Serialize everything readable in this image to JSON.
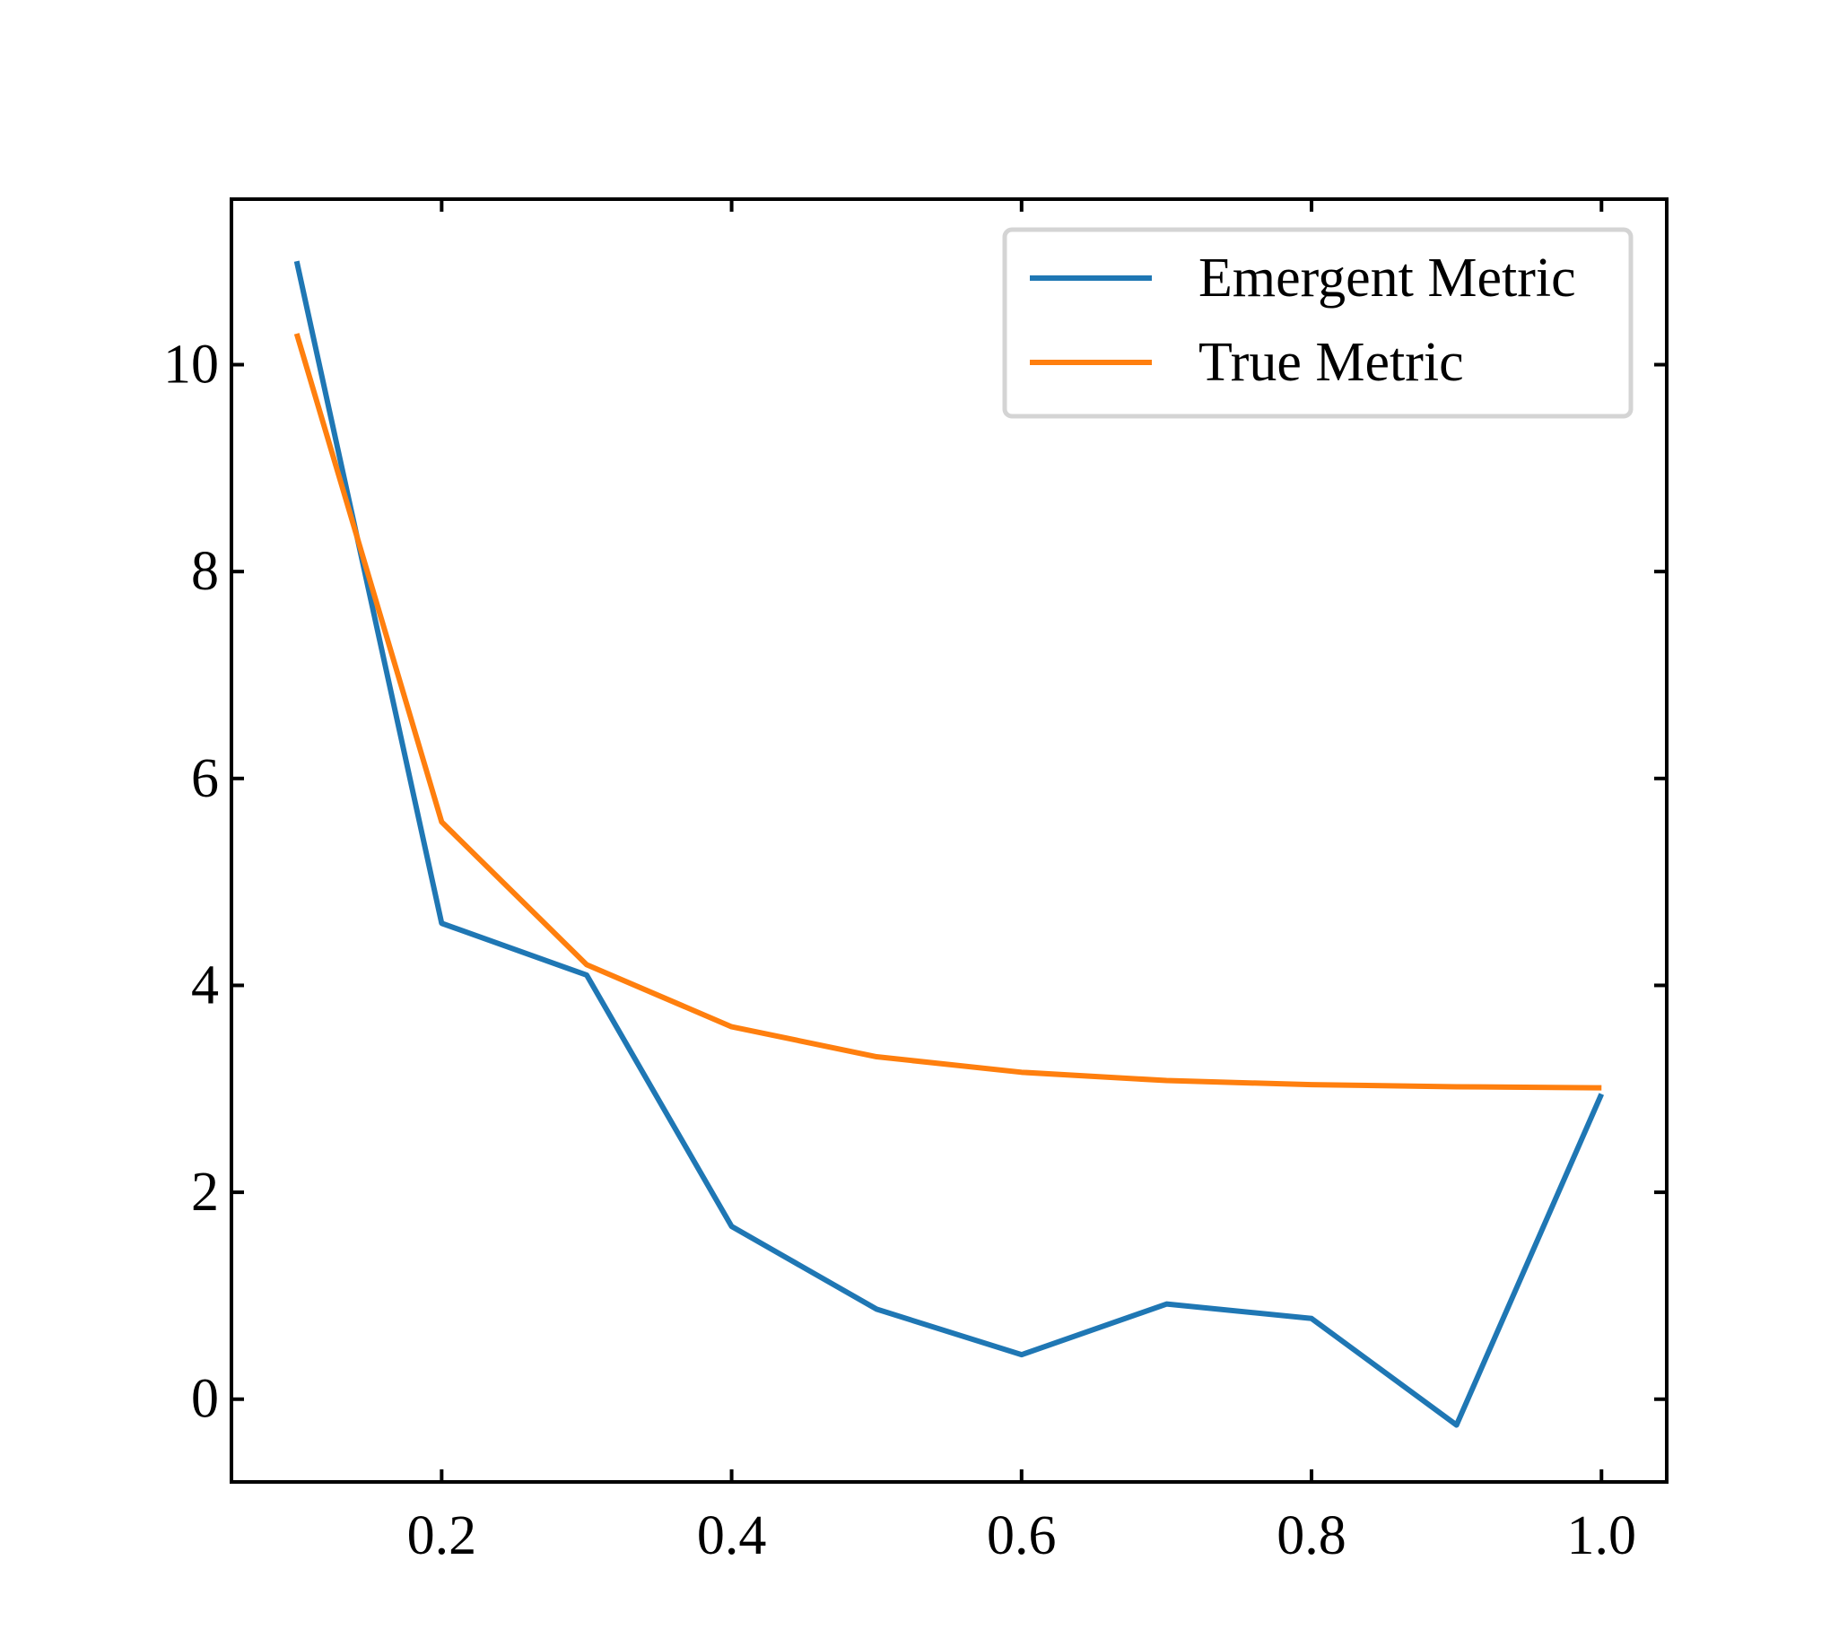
{
  "chart_data": {
    "type": "line",
    "title": "",
    "xlabel": "",
    "ylabel": "",
    "xlim": [
      0.055,
      1.045
    ],
    "ylim": [
      -0.8,
      11.6
    ],
    "x_ticks": [
      0.2,
      0.4,
      0.6,
      0.8,
      1.0
    ],
    "x_tick_labels": [
      "0.2",
      "0.4",
      "0.6",
      "0.8",
      "1.0"
    ],
    "y_ticks": [
      0,
      2,
      4,
      6,
      8,
      10
    ],
    "y_tick_labels": [
      "0",
      "2",
      "4",
      "6",
      "8",
      "10"
    ],
    "grid": false,
    "legend_position": "top-right",
    "x": [
      0.1,
      0.2,
      0.3,
      0.4,
      0.5,
      0.6,
      0.7,
      0.8,
      0.9,
      1.0
    ],
    "series": [
      {
        "name": "Emergent Metric",
        "color": "#1f77b4",
        "values": [
          11.0,
          4.6,
          4.1,
          1.67,
          0.87,
          0.43,
          0.92,
          0.78,
          -0.25,
          2.95
        ]
      },
      {
        "name": "True Metric",
        "color": "#ff7f0e",
        "values": [
          10.3,
          5.58,
          4.2,
          3.6,
          3.31,
          3.16,
          3.08,
          3.04,
          3.02,
          3.01
        ]
      }
    ]
  }
}
